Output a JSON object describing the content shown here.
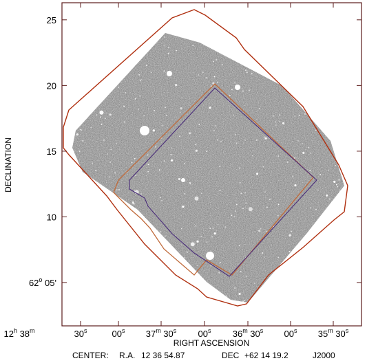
{
  "chart_data": {
    "type": "sky-image",
    "xlabel": "RIGHT ASCENSION",
    "ylabel": "DECLINATION",
    "y_ticks": [
      {
        "value": 5,
        "label": "62",
        "sup": "o",
        "suffix": " 05'"
      },
      {
        "value": 10,
        "label": "10"
      },
      {
        "value": 15,
        "label": "15"
      },
      {
        "value": 20,
        "label": "20"
      },
      {
        "value": 25,
        "label": "25"
      }
    ],
    "ylim": [
      1.7,
      26.3
    ],
    "x_ticks": [
      {
        "label": "12",
        "sup": "h",
        "suffix": " 38",
        "sup2": "m"
      },
      {
        "label": "30",
        "sup": "s"
      },
      {
        "label": "00",
        "sup": "s"
      },
      {
        "label": "37",
        "sup": "m",
        "suffix": " 30",
        "sup2": "s"
      },
      {
        "label": "00",
        "sup": "s"
      },
      {
        "label": "36",
        "sup": "m",
        "suffix": " 30",
        "sup2": "s"
      },
      {
        "label": "00",
        "sup": "s"
      },
      {
        "label": "35",
        "sup": "m",
        "suffix": " 30",
        "sup2": "s"
      }
    ],
    "footer": {
      "center_label": "CENTER:",
      "ra_label": "R.A.",
      "ra_value": "12 36 54.87",
      "dec_label": "DEC",
      "dec_value": "+62 14 19.2",
      "epoch": "J2000"
    },
    "grid": false,
    "colors": {
      "outer_footprint": "#b03010",
      "inner_footprint": "#c06a3a",
      "central_footprint": "#4a2d7a",
      "background": "#ffffff",
      "image": "#8a8a8a"
    }
  }
}
